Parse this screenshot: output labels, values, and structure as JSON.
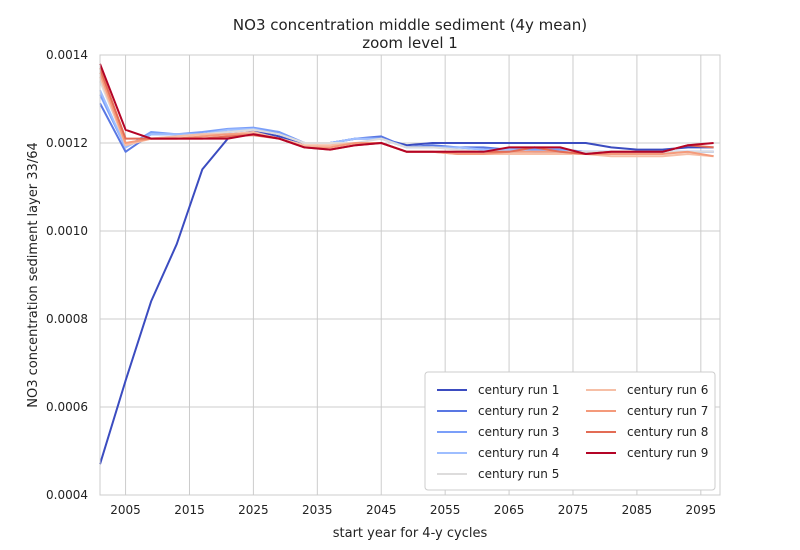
{
  "chart_data": {
    "type": "line",
    "title": "NO3 concentration middle sediment (4y mean)",
    "subtitle": "zoom level 1",
    "xlabel": "start year for 4-y cycles",
    "ylabel": "NO3 concentration sediment layer 33/64",
    "xlim": [
      2001,
      2098
    ],
    "ylim": [
      0.0004,
      0.0014
    ],
    "xticks": [
      "2005",
      "2015",
      "2025",
      "2035",
      "2045",
      "2055",
      "2065",
      "2075",
      "2085",
      "2095"
    ],
    "yticks": [
      "0.0004",
      "0.0006",
      "0.0008",
      "0.0010",
      "0.0012",
      "0.0014"
    ],
    "grid": true,
    "legend_position": "lower-right",
    "x": [
      2001,
      2005,
      2009,
      2013,
      2017,
      2021,
      2025,
      2029,
      2033,
      2037,
      2041,
      2045,
      2049,
      2053,
      2057,
      2061,
      2065,
      2069,
      2073,
      2077,
      2081,
      2085,
      2089,
      2093,
      2097
    ],
    "series": [
      {
        "name": "century run 1",
        "color": "#3b4cc0",
        "values": [
          0.00047,
          0.00066,
          0.00084,
          0.00097,
          0.00114,
          0.00121,
          0.001228,
          0.001215,
          0.0012,
          0.0012,
          0.00121,
          0.00121,
          0.001195,
          0.0012,
          0.0012,
          0.0012,
          0.0012,
          0.0012,
          0.0012,
          0.0012,
          0.00119,
          0.001185,
          0.001185,
          0.00119,
          0.00119
        ]
      },
      {
        "name": "century run 2",
        "color": "#5977e3",
        "values": [
          0.00129,
          0.00118,
          0.00122,
          0.00122,
          0.00122,
          0.001225,
          0.00123,
          0.001225,
          0.0012,
          0.0012,
          0.00121,
          0.001215,
          0.00119,
          0.001195,
          0.00119,
          0.00119,
          0.001185,
          0.001185,
          0.001185,
          0.00118,
          0.00118,
          0.00118,
          0.00118,
          0.00118,
          0.00118
        ]
      },
      {
        "name": "century run 3",
        "color": "#7b9ff9",
        "values": [
          0.00131,
          0.00119,
          0.001225,
          0.00122,
          0.001225,
          0.001232,
          0.001235,
          0.001225,
          0.0012,
          0.0012,
          0.00121,
          0.00121,
          0.00119,
          0.00119,
          0.00119,
          0.001185,
          0.001185,
          0.001185,
          0.001185,
          0.00118,
          0.00118,
          0.00118,
          0.00118,
          0.00118,
          0.00118
        ]
      },
      {
        "name": "century run 4",
        "color": "#9ebeff",
        "values": [
          0.00132,
          0.00119,
          0.00122,
          0.00122,
          0.00122,
          0.00123,
          0.001232,
          0.00122,
          0.0012,
          0.0012,
          0.00121,
          0.00121,
          0.00119,
          0.00119,
          0.00119,
          0.001185,
          0.001185,
          0.00118,
          0.00118,
          0.00118,
          0.00118,
          0.00118,
          0.00118,
          0.00118,
          0.00118
        ]
      },
      {
        "name": "century run 5",
        "color": "#dddcdc",
        "values": [
          0.00134,
          0.0012,
          0.00121,
          0.001215,
          0.00122,
          0.001225,
          0.00123,
          0.00122,
          0.0012,
          0.0012,
          0.0012,
          0.00121,
          0.00119,
          0.00119,
          0.001185,
          0.00118,
          0.00118,
          0.00118,
          0.00118,
          0.00118,
          0.00118,
          0.00118,
          0.00118,
          0.00118,
          0.00118
        ]
      },
      {
        "name": "century run 6",
        "color": "#f6bfa6",
        "values": [
          0.00135,
          0.001195,
          0.00121,
          0.001215,
          0.00122,
          0.00122,
          0.001225,
          0.00121,
          0.001195,
          0.001195,
          0.0012,
          0.0012,
          0.00118,
          0.00118,
          0.001175,
          0.001175,
          0.001175,
          0.001175,
          0.001175,
          0.001175,
          0.00117,
          0.00117,
          0.00117,
          0.001175,
          0.00117
        ]
      },
      {
        "name": "century run 7",
        "color": "#f49a7b",
        "values": [
          0.00136,
          0.0012,
          0.00121,
          0.00121,
          0.001215,
          0.00122,
          0.00122,
          0.00121,
          0.00119,
          0.00119,
          0.0012,
          0.0012,
          0.00118,
          0.00118,
          0.001175,
          0.001175,
          0.00118,
          0.00118,
          0.00118,
          0.001175,
          0.001175,
          0.001175,
          0.001175,
          0.00118,
          0.00117
        ]
      },
      {
        "name": "century run 8",
        "color": "#e36c55",
        "values": [
          0.00137,
          0.00121,
          0.00121,
          0.00121,
          0.00121,
          0.001215,
          0.001218,
          0.00121,
          0.00119,
          0.001185,
          0.001195,
          0.0012,
          0.00118,
          0.00118,
          0.00118,
          0.00118,
          0.00118,
          0.00119,
          0.00118,
          0.001175,
          0.00118,
          0.00118,
          0.00118,
          0.001195,
          0.00119
        ]
      },
      {
        "name": "century run 9",
        "color": "#b40426",
        "values": [
          0.00138,
          0.00123,
          0.00121,
          0.00121,
          0.00121,
          0.00121,
          0.00122,
          0.00121,
          0.00119,
          0.001185,
          0.001195,
          0.0012,
          0.00118,
          0.00118,
          0.00118,
          0.00118,
          0.00119,
          0.00119,
          0.00119,
          0.001175,
          0.00118,
          0.00118,
          0.00118,
          0.001195,
          0.0012
        ]
      }
    ]
  }
}
